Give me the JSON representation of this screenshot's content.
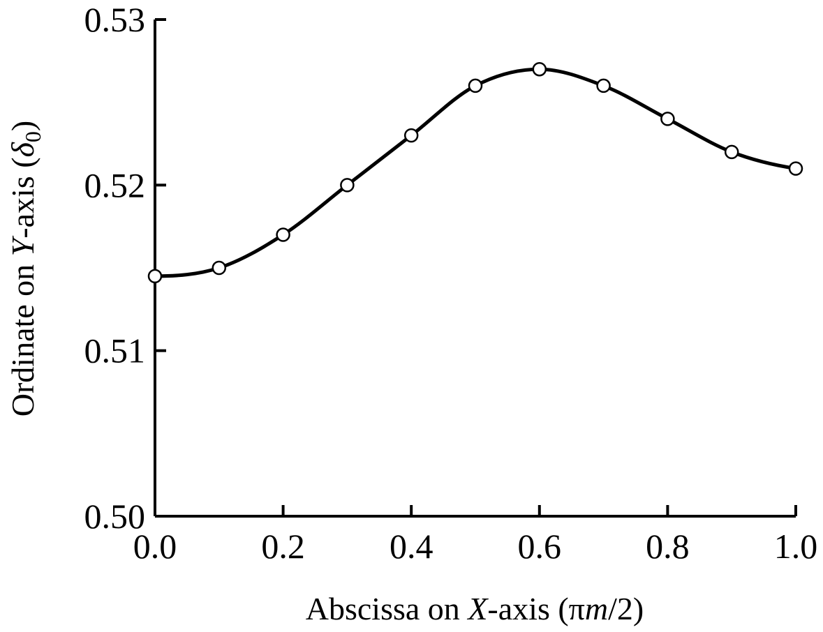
{
  "chart_data": {
    "type": "line",
    "xlabel": {
      "prefix": "Abscissa on ",
      "italic_var": "X",
      "suffix": "-axis (πm/2)",
      "suffix_pre": "-axis (π",
      "suffix_var": "m",
      "suffix_post": "/2)"
    },
    "ylabel": {
      "prefix": "Ordinate on ",
      "italic_var": "Y",
      "mid": "-axis (",
      "symbol": "δ",
      "subscript": "0",
      "post": ")"
    },
    "xlim": [
      0.0,
      1.0
    ],
    "ylim": [
      0.5,
      0.53
    ],
    "xticks": [
      "0.0",
      "0.2",
      "0.4",
      "0.6",
      "0.8",
      "1.0"
    ],
    "yticks": [
      "0.50",
      "0.51",
      "0.52",
      "0.53"
    ],
    "grid": false,
    "series": [
      {
        "x": [
          0.0,
          0.1,
          0.2,
          0.3,
          0.4,
          0.5,
          0.6,
          0.7,
          0.8,
          0.9,
          1.0
        ],
        "y": [
          0.5145,
          0.515,
          0.517,
          0.52,
          0.523,
          0.526,
          0.527,
          0.526,
          0.524,
          0.522,
          0.521
        ],
        "marker": "open-circle",
        "color": "#000000"
      }
    ]
  }
}
